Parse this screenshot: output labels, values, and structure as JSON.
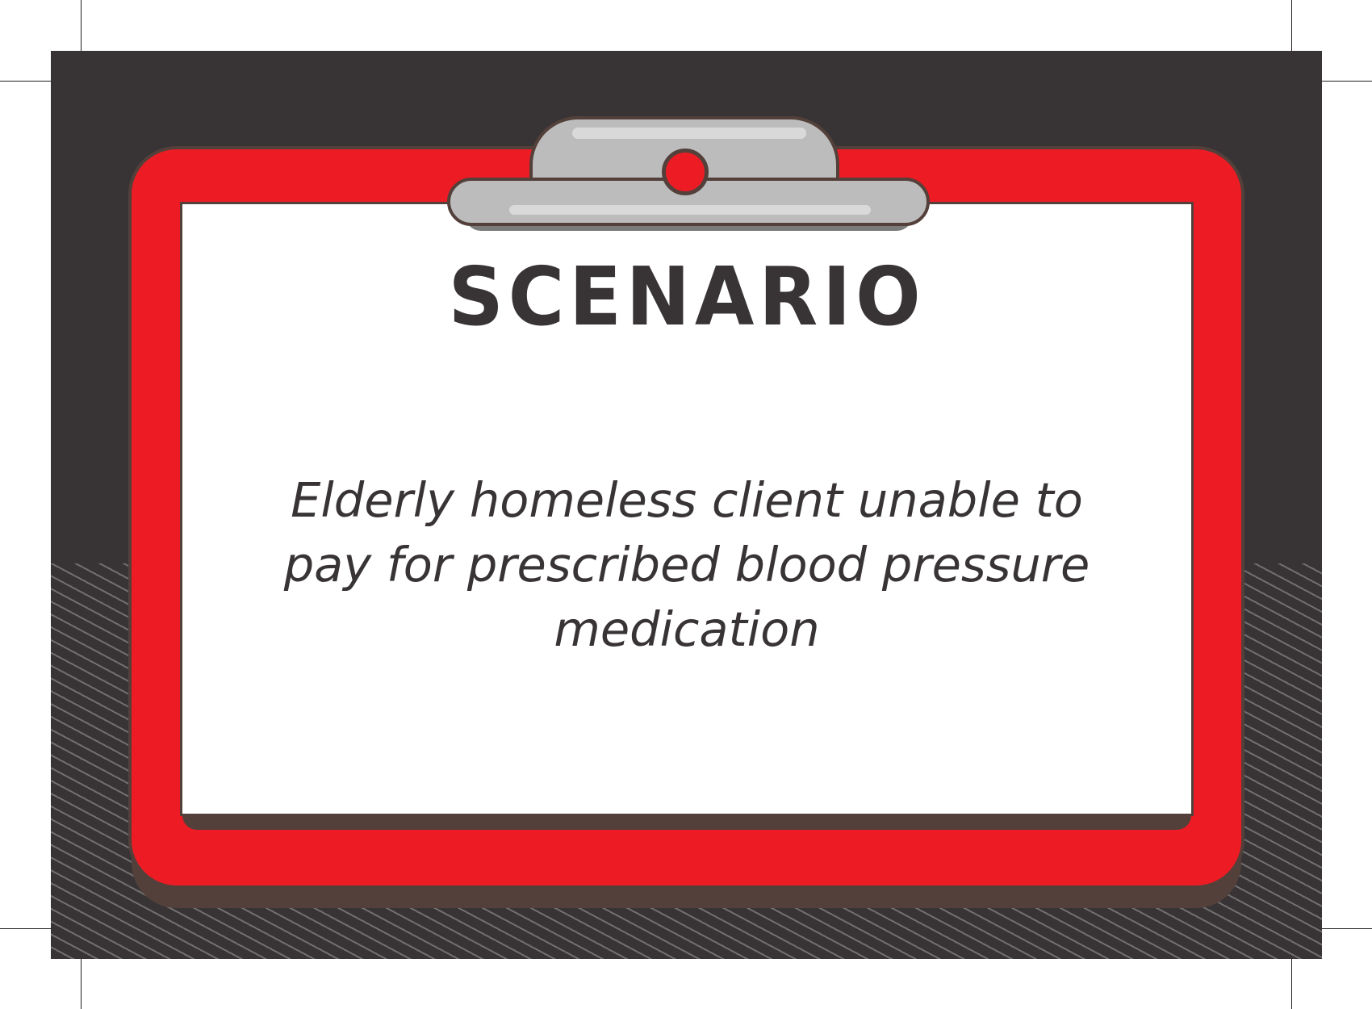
{
  "card": {
    "title": "SCENARIO",
    "scenario_text": "Elderly homeless client unable to pay for prescribed blood pressure medication"
  },
  "colors": {
    "background": "#383435",
    "clipboard": "#ed1c24",
    "outline": "#53403a",
    "clip": "#bcbcbc",
    "paper": "#ffffff",
    "text": "#383435"
  },
  "icons": [
    "clipboard-icon",
    "clip-icon"
  ]
}
